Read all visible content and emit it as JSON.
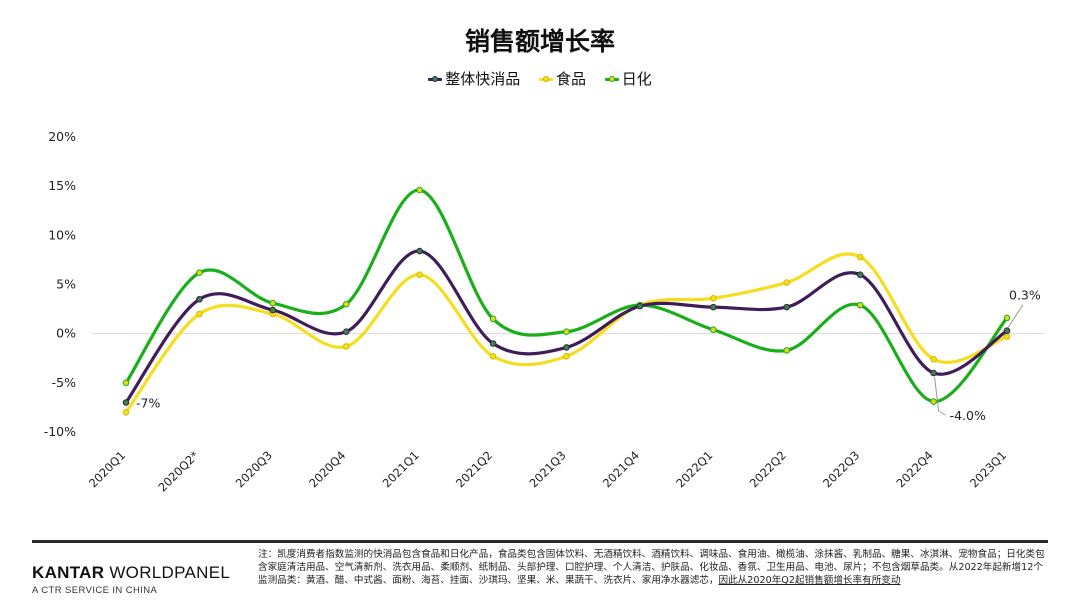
{
  "title": "销售额增长率",
  "legend": [
    {
      "label": "整体快消品",
      "color": "#3f1d59"
    },
    {
      "label": "食品",
      "color": "#f7dd1f"
    },
    {
      "label": "日化",
      "color": "#1aaf1a"
    }
  ],
  "chart_data": {
    "type": "line",
    "title": "销售额增长率",
    "categories": [
      "2020Q1",
      "2020Q2*",
      "2020Q3",
      "2020Q4",
      "2021Q1",
      "2021Q2",
      "2021Q3",
      "2021Q4",
      "2022Q1",
      "2022Q2",
      "2022Q3",
      "2022Q4",
      "2023Q1"
    ],
    "y_ticks": [
      "20%",
      "15%",
      "10%",
      "5%",
      "0%",
      "-5%",
      "-10%"
    ],
    "ylim": [
      -10,
      20
    ],
    "grid": false,
    "legend_position": "top",
    "series": [
      {
        "name": "整体快消品",
        "color": "#3f1d59",
        "values": [
          -7.0,
          3.5,
          2.4,
          0.2,
          8.4,
          -1.0,
          -1.4,
          2.8,
          2.7,
          2.7,
          6.0,
          -4.0,
          0.3
        ]
      },
      {
        "name": "食品",
        "color": "#f7dd1f",
        "values": [
          -8.0,
          2.0,
          2.0,
          -1.3,
          6.0,
          -2.3,
          -2.3,
          2.9,
          3.6,
          5.2,
          7.8,
          -2.6,
          -0.3
        ]
      },
      {
        "name": "日化",
        "color": "#1aaf1a",
        "values": [
          -5.0,
          6.2,
          3.1,
          3.0,
          14.6,
          1.5,
          0.2,
          2.9,
          0.4,
          -1.7,
          2.9,
          -6.9,
          1.6
        ]
      }
    ],
    "annotations": [
      {
        "text": "-7%",
        "series": 0,
        "index": 0
      },
      {
        "text": "-4.0%",
        "series": 0,
        "index": 11
      },
      {
        "text": "0.3%",
        "series": 0,
        "index": 12
      }
    ]
  },
  "footer": {
    "brand_bold": "KANTAR",
    "brand_rest": " WORLDPANEL",
    "brand_sub": "A CTR SERVICE IN CHINA",
    "note": "注：凯度消费者指数监测的快消品包含食品和日化产品，食品类包含固体饮料、无酒精饮料、酒精饮料、调味品、食用油、橄榄油、涂抹酱、乳制品、糖果、冰淇淋、宠物食品；日化类包含家庭清洁用品、空气清新剂、洗衣用品、柔顺剂、纸制品、头部护理、口腔护理、个人清洁、护肤品、化妆品、香氛、卫生用品、电池、尿片；不包含烟草品类。从2022年起新增12个监测品类：黄酒、醋、中式酱、面粉、海苔、挂面、沙琪玛、坚果、米、果蔬干、洗衣片、家用净水器滤芯，",
    "note_link": "因此从2020年Q2起销售额增长率有所变动"
  }
}
